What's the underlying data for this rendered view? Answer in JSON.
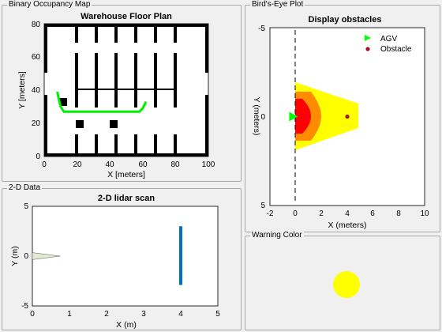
{
  "panels": {
    "occupancy": "Binary Occupancy Map",
    "birdseye": "Bird's-Eye Plot",
    "data2d": "2-D Data",
    "warning": "Warning Color"
  },
  "colors": {
    "path": "#00ee00",
    "lidar_line": "#0072bd",
    "cone_fill": "#e3ecd2",
    "warning": "#ffff00",
    "zone_outer": "#ffff00",
    "zone_mid": "#ff8c00",
    "zone_inner": "#ff0000",
    "agv": "#00ff00",
    "obstacle": "#a2142f"
  },
  "chart_data": [
    {
      "type": "map",
      "title": "Warehouse Floor Plan",
      "xlabel": "X [meters]",
      "ylabel": "Y [meters]",
      "xlim": [
        0,
        100
      ],
      "ylim": [
        0,
        80
      ],
      "xticks": [
        "0",
        "20",
        "40",
        "60",
        "80",
        "100"
      ],
      "yticks": [
        "0",
        "20",
        "40",
        "60",
        "80"
      ],
      "path": [
        [
          8,
          39
        ],
        [
          9,
          34
        ],
        [
          10,
          30
        ],
        [
          12,
          27
        ],
        [
          58,
          27
        ],
        [
          60,
          29
        ],
        [
          61,
          31
        ],
        [
          62,
          33
        ]
      ]
    },
    {
      "type": "line",
      "title": "2-D lidar scan",
      "xlabel": "X (m)",
      "ylabel": "Y (m)",
      "xlim": [
        0,
        5
      ],
      "ylim": [
        -5,
        5
      ],
      "xticks": [
        "0",
        "1",
        "2",
        "3",
        "4",
        "5"
      ],
      "yticks": [
        "-5",
        "0",
        "5"
      ],
      "series": [
        {
          "values": [
            [
              4,
              -2.9
            ],
            [
              4,
              3
            ]
          ]
        }
      ],
      "cone": [
        [
          0,
          0
        ],
        [
          0.75,
          0
        ],
        [
          0,
          0.35
        ],
        [
          0,
          -0.35
        ]
      ]
    },
    {
      "type": "scatter",
      "title": "Display obstacles",
      "xlabel": "X (meters)",
      "ylabel": "Y (meters)",
      "xlim": [
        -2,
        10
      ],
      "ylim": [
        -5,
        5
      ],
      "xticks": [
        "-2",
        "0",
        "2",
        "4",
        "6",
        "8",
        "10"
      ],
      "yticks": [
        "-5",
        "0",
        "5"
      ],
      "legend": "top-right",
      "series": [
        {
          "name": "AGV",
          "values": [
            [
              -0.2,
              0
            ]
          ]
        },
        {
          "name": "Obstacle",
          "values": [
            [
              4,
              0
            ]
          ]
        }
      ]
    }
  ]
}
